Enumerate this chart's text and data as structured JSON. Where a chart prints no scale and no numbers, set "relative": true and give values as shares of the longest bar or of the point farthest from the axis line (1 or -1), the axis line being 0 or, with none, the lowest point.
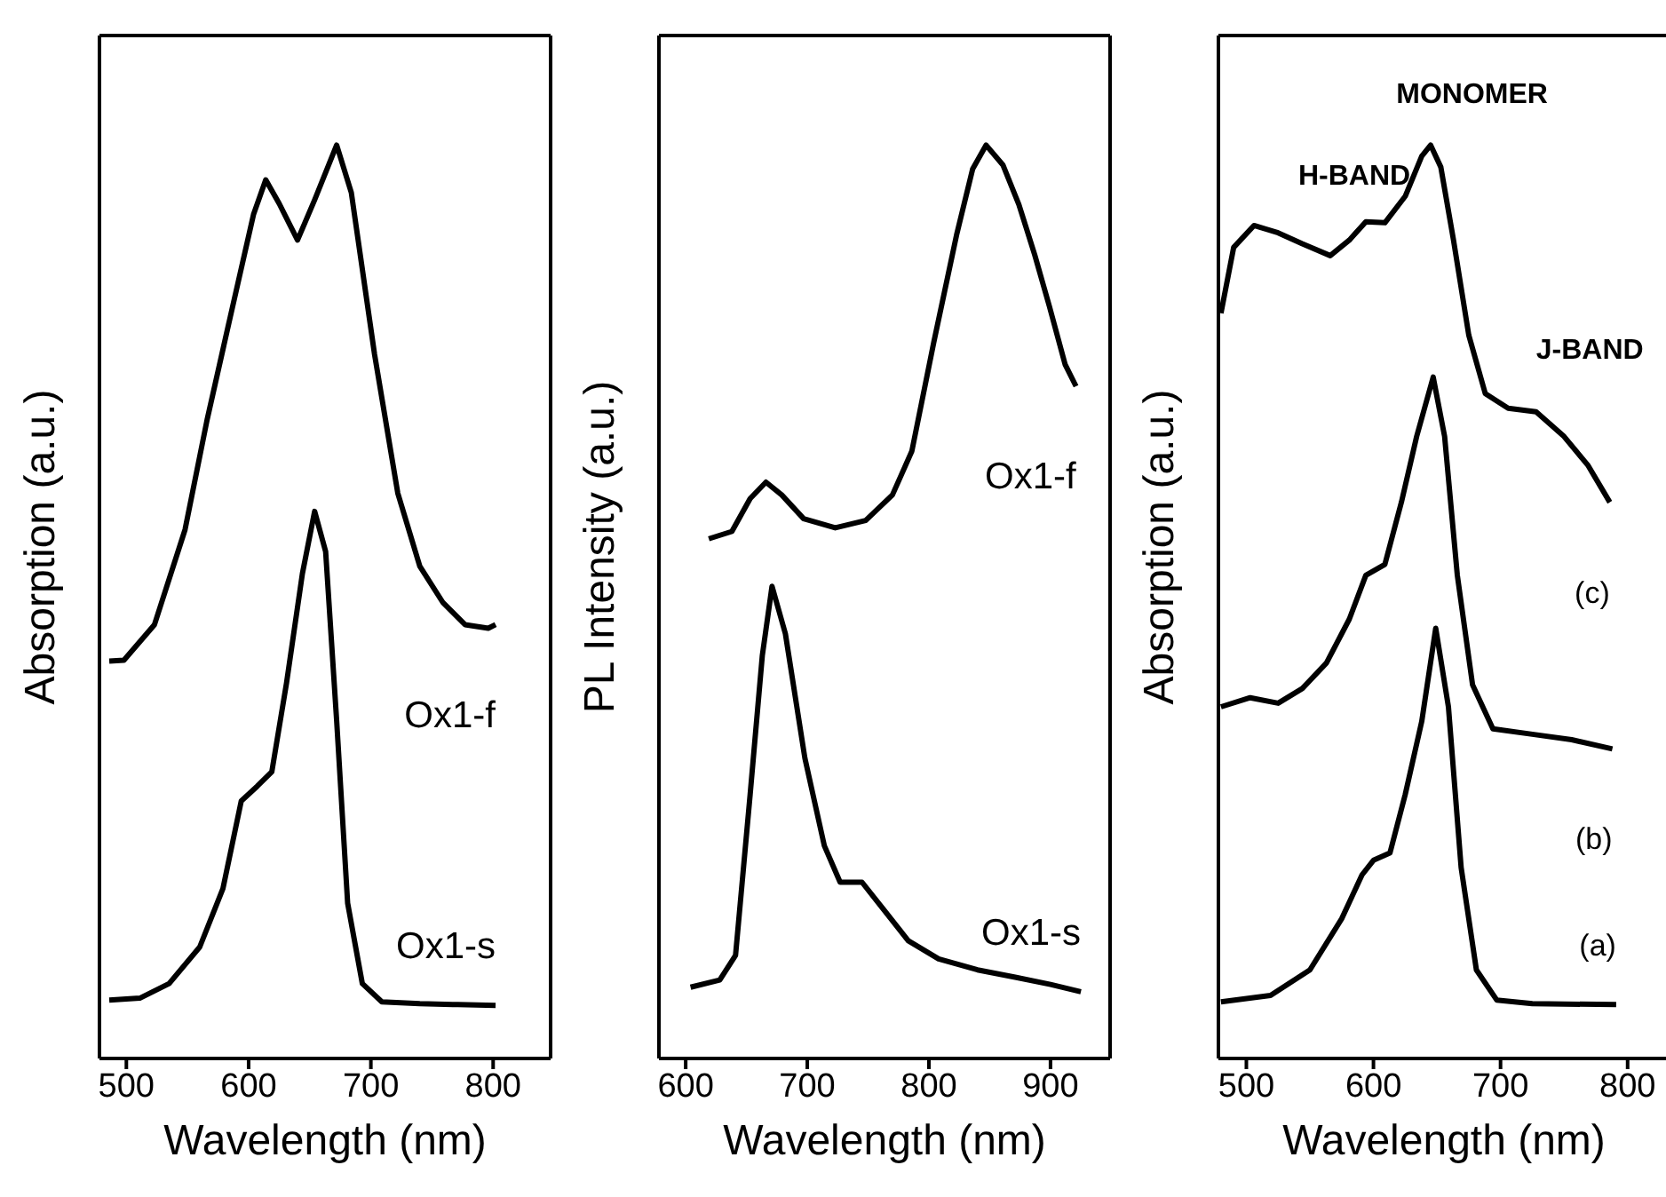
{
  "chart_data": [
    {
      "type": "line",
      "xlabel": "Wavelength (nm)",
      "ylabel": "Absorption (a.u.)",
      "relative": true,
      "xlim": [
        478,
        847
      ],
      "xticks": [
        500,
        600,
        700,
        800
      ],
      "series": [
        {
          "name": "Ox1-f",
          "color": "#000000",
          "x": [
            486,
            498,
            523,
            548,
            566,
            585,
            604,
            614,
            625,
            640,
            654,
            672,
            684,
            703,
            722,
            740,
            759,
            777,
            796,
            802
          ],
          "values": [
            0.435,
            0.436,
            0.475,
            0.579,
            0.699,
            0.812,
            0.924,
            0.962,
            0.936,
            0.896,
            0.94,
            1.0,
            0.948,
            0.771,
            0.619,
            0.539,
            0.499,
            0.475,
            0.471,
            0.475
          ]
        },
        {
          "name": "Ox1-s",
          "color": "#000000",
          "x": [
            486,
            511,
            535,
            560,
            579,
            594,
            607,
            619,
            631,
            644,
            654,
            663,
            672,
            681,
            693,
            709,
            740,
            771,
            802
          ],
          "values": [
            0.064,
            0.066,
            0.082,
            0.122,
            0.186,
            0.282,
            0.298,
            0.314,
            0.411,
            0.531,
            0.599,
            0.555,
            0.37,
            0.17,
            0.082,
            0.062,
            0.06,
            0.059,
            0.058
          ]
        }
      ]
    },
    {
      "type": "line",
      "xlabel": "Wavelength (nm)",
      "ylabel": "PL Intensity (a.u.)",
      "relative": true,
      "xlim": [
        578,
        949
      ],
      "xticks": [
        600,
        700,
        800,
        900
      ],
      "series": [
        {
          "name": "Ox1-f",
          "color": "#000000",
          "x": [
            619,
            638,
            653,
            666,
            679,
            697,
            723,
            748,
            770,
            786,
            804,
            823,
            836,
            847,
            861,
            874,
            887,
            899,
            912,
            921
          ],
          "values": [
            0.569,
            0.577,
            0.613,
            0.631,
            0.617,
            0.591,
            0.581,
            0.589,
            0.617,
            0.665,
            0.784,
            0.903,
            0.974,
            1.0,
            0.978,
            0.935,
            0.88,
            0.824,
            0.76,
            0.736
          ]
        },
        {
          "name": "Ox1-s",
          "color": "#000000",
          "x": [
            604,
            628,
            641,
            653,
            663,
            671,
            682,
            698,
            714,
            727,
            745,
            764,
            783,
            808,
            840,
            871,
            900,
            925
          ],
          "values": [
            0.078,
            0.086,
            0.113,
            0.289,
            0.441,
            0.517,
            0.465,
            0.329,
            0.233,
            0.193,
            0.193,
            0.161,
            0.129,
            0.109,
            0.097,
            0.089,
            0.081,
            0.073
          ]
        }
      ]
    },
    {
      "type": "line",
      "xlabel": "Wavelength (nm)",
      "ylabel": "Absorption (a.u.)",
      "relative": true,
      "xlim": [
        478,
        833
      ],
      "xticks": [
        500,
        600,
        700,
        800
      ],
      "series": [
        {
          "name": "(c)",
          "color": "#000000",
          "x": [
            480,
            490,
            506,
            525,
            544,
            566,
            581,
            594,
            609,
            625,
            638,
            645,
            653,
            663,
            675,
            688,
            706,
            728,
            750,
            769,
            786
          ],
          "values": [
            0.816,
            0.888,
            0.912,
            0.904,
            0.892,
            0.879,
            0.896,
            0.916,
            0.915,
            0.944,
            0.988,
            1.0,
            0.976,
            0.896,
            0.792,
            0.728,
            0.712,
            0.708,
            0.681,
            0.649,
            0.609
          ]
        },
        {
          "name": "(b)",
          "color": "#000000",
          "x": [
            480,
            503,
            525,
            544,
            563,
            581,
            594,
            609,
            622,
            634,
            647,
            656,
            666,
            678,
            694,
            725,
            756,
            788
          ],
          "values": [
            0.385,
            0.395,
            0.389,
            0.405,
            0.433,
            0.481,
            0.529,
            0.541,
            0.609,
            0.681,
            0.746,
            0.681,
            0.529,
            0.409,
            0.361,
            0.355,
            0.349,
            0.339
          ]
        },
        {
          "name": "(a)",
          "color": "#000000",
          "x": [
            480,
            519,
            550,
            575,
            591,
            600,
            613,
            625,
            638,
            649,
            659,
            669,
            681,
            697,
            725,
            791
          ],
          "values": [
            0.062,
            0.069,
            0.097,
            0.153,
            0.201,
            0.217,
            0.225,
            0.289,
            0.369,
            0.471,
            0.385,
            0.209,
            0.097,
            0.064,
            0.06,
            0.059
          ]
        }
      ],
      "annotations": [
        "MONOMER",
        "H-BAND",
        "J-BAND"
      ]
    }
  ]
}
